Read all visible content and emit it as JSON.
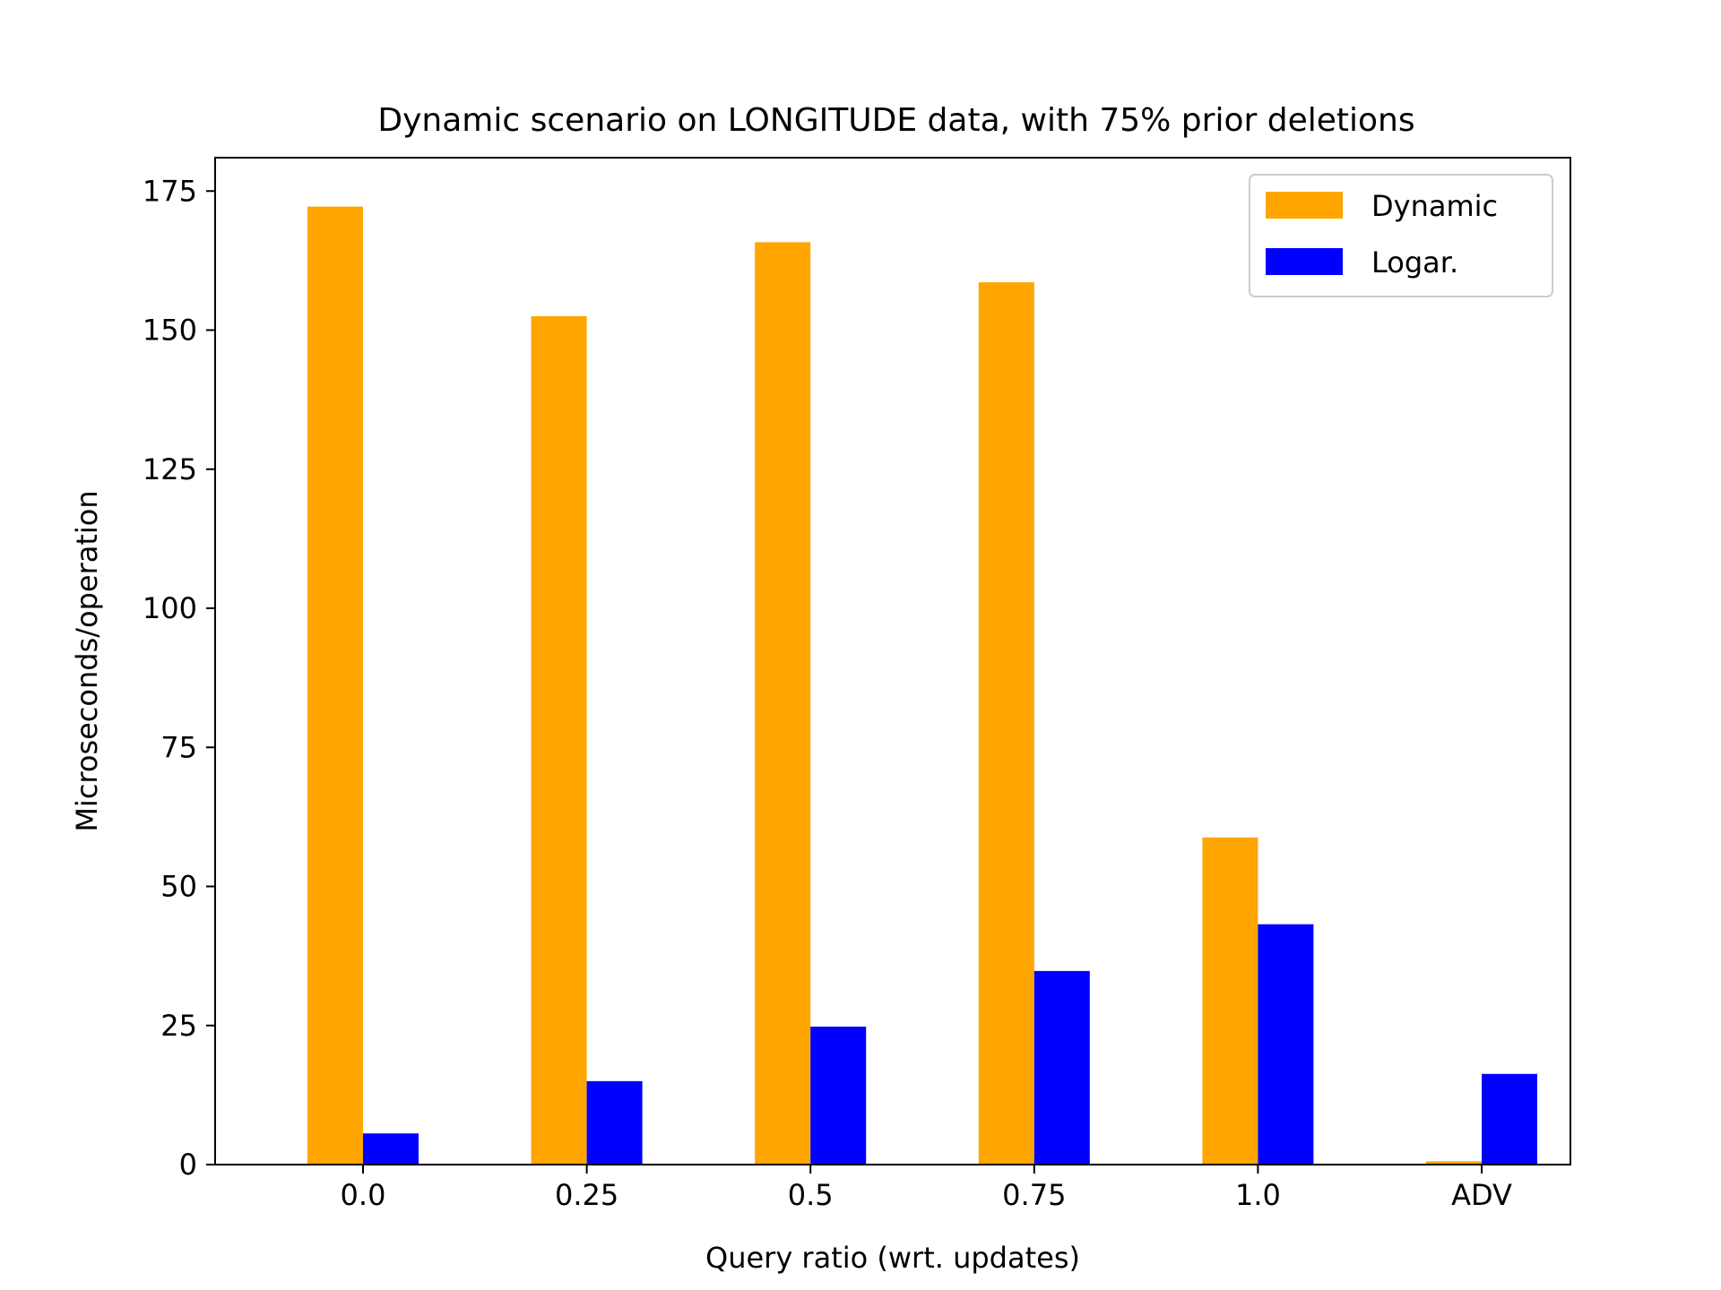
{
  "chart_data": {
    "type": "bar",
    "title": "Dynamic scenario on LONGITUDE data, with 75% prior deletions",
    "xlabel": "Query ratio (wrt. updates)",
    "ylabel": "Microseconds/operation",
    "categories": [
      "0.0",
      "0.25",
      "0.5",
      "0.75",
      "1.0",
      "ADV"
    ],
    "series": [
      {
        "name": "Dynamic",
        "color": "#ffa500",
        "values": [
          172.2,
          152.5,
          165.8,
          158.6,
          58.8,
          0.6
        ]
      },
      {
        "name": "Logar.",
        "color": "#0000ff",
        "values": [
          5.6,
          15.0,
          24.8,
          34.8,
          43.2,
          16.3
        ]
      }
    ],
    "ylim": [
      0,
      181
    ],
    "yticks": [
      0,
      25,
      50,
      75,
      100,
      125,
      150,
      175
    ],
    "grid": false,
    "legend": "top-right"
  }
}
